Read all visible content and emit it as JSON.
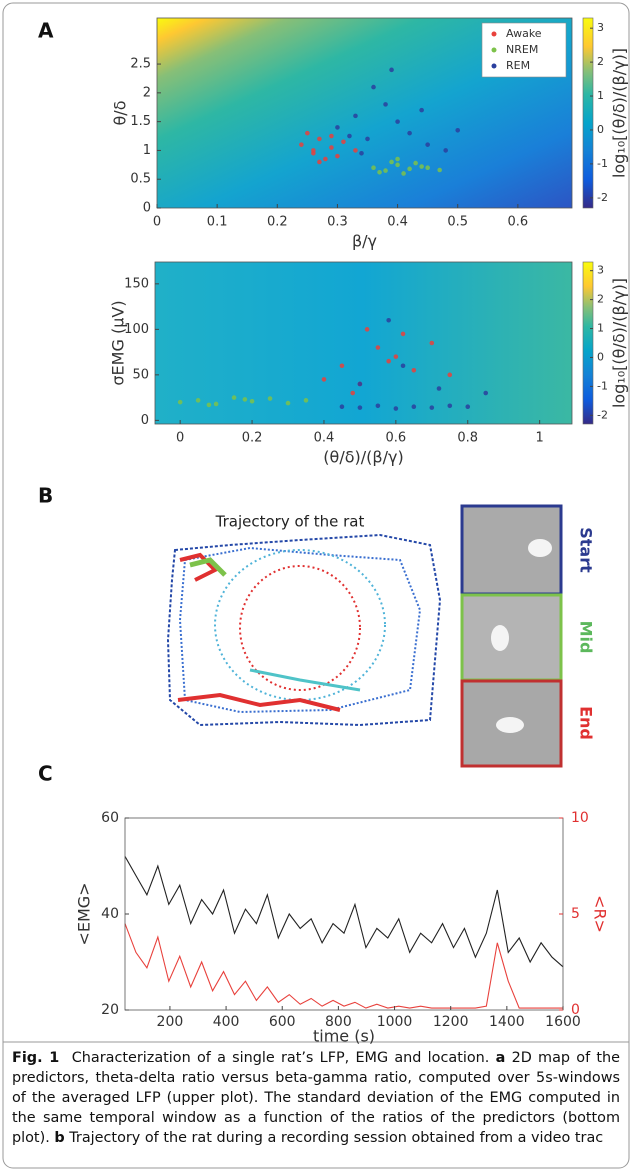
{
  "panel_labels": [
    "A",
    "B",
    "C"
  ],
  "chart_data": [
    {
      "type": "scatter",
      "xlabel": "β/γ",
      "ylabel": "θ/δ",
      "xlim": [
        0,
        0.69
      ],
      "ylim": [
        0,
        3.3
      ],
      "xticks": [
        0,
        0.1,
        0.2,
        0.3,
        0.4,
        0.5,
        0.6
      ],
      "yticks": [
        0,
        0.5,
        1,
        1.5,
        2,
        2.5
      ],
      "legend": "upper right",
      "series": [
        {
          "name": "Awake",
          "color": "#e8413c",
          "x": [
            0.24,
            0.26,
            0.27,
            0.28,
            0.29,
            0.3,
            0.25,
            0.31,
            0.27,
            0.33,
            0.29,
            0.26
          ],
          "y": [
            1.1,
            0.95,
            1.2,
            0.85,
            1.05,
            0.9,
            1.3,
            1.15,
            0.8,
            1.0,
            1.25,
            1.0
          ]
        },
        {
          "name": "NREM",
          "color": "#7dc24a",
          "x": [
            0.36,
            0.38,
            0.4,
            0.42,
            0.44,
            0.39,
            0.41,
            0.45,
            0.43,
            0.37,
            0.47,
            0.4
          ],
          "y": [
            0.7,
            0.65,
            0.75,
            0.68,
            0.72,
            0.8,
            0.6,
            0.7,
            0.78,
            0.62,
            0.66,
            0.85
          ]
        },
        {
          "name": "REM",
          "color": "#2a3f9e",
          "x": [
            0.3,
            0.33,
            0.35,
            0.38,
            0.4,
            0.42,
            0.45,
            0.36,
            0.48,
            0.32,
            0.44,
            0.39,
            0.5,
            0.34
          ],
          "y": [
            1.4,
            1.6,
            1.2,
            1.8,
            1.5,
            1.3,
            1.1,
            2.1,
            1.0,
            1.25,
            1.7,
            2.4,
            1.35,
            0.95
          ]
        }
      ],
      "colorbar": {
        "label": "log₁₀[(θ/δ)/(β/γ)]",
        "lim": [
          -2.3,
          3.3
        ],
        "ticks": [
          -2,
          -1,
          0,
          1,
          2,
          3
        ]
      }
    },
    {
      "type": "scatter",
      "xlabel": "(θ/δ)/(β/γ)",
      "ylabel": "σEMG (μV)",
      "xlim": [
        -0.07,
        1.09
      ],
      "ylim": [
        -4,
        174
      ],
      "xticks": [
        0,
        0.2,
        0.4,
        0.6,
        0.8,
        1
      ],
      "yticks": [
        0,
        50,
        100,
        150
      ],
      "series": [
        {
          "color": "#e8413c",
          "x": [
            0.4,
            0.45,
            0.5,
            0.55,
            0.6,
            0.62,
            0.65,
            0.7,
            0.52,
            0.58,
            0.75,
            0.48
          ],
          "y": [
            45,
            60,
            40,
            80,
            70,
            95,
            55,
            85,
            100,
            65,
            50,
            30
          ]
        },
        {
          "color": "#7dc24a",
          "x": [
            0.0,
            0.05,
            0.1,
            0.15,
            0.2,
            0.25,
            0.3,
            0.35,
            0.08,
            0.18
          ],
          "y": [
            20,
            22,
            18,
            25,
            21,
            24,
            19,
            22,
            17,
            23
          ]
        },
        {
          "color": "#2a3f9e",
          "x": [
            0.45,
            0.5,
            0.55,
            0.6,
            0.65,
            0.7,
            0.75,
            0.8,
            0.5,
            0.62,
            0.72,
            0.58,
            0.85
          ],
          "y": [
            15,
            14,
            16,
            13,
            15,
            14,
            16,
            15,
            40,
            60,
            35,
            110,
            30
          ]
        }
      ],
      "colorbar": {
        "label": "log₁₀[(θ/δ)/(β/γ)]",
        "lim": [
          -2.3,
          3.3
        ],
        "ticks": [
          -2,
          -1,
          0,
          1,
          2,
          3
        ]
      }
    },
    {
      "type": "line",
      "xlabel": "time (s)",
      "ylabel": "<EMG>",
      "y2label": "<R>",
      "x": [
        40,
        79,
        118,
        157,
        196,
        235,
        274,
        313,
        352,
        391,
        430,
        469,
        508,
        547,
        586,
        625,
        664,
        703,
        742,
        781,
        820,
        859,
        898,
        937,
        976,
        1015,
        1054,
        1093,
        1132,
        1171,
        1210,
        1249,
        1288,
        1327,
        1366,
        1405,
        1444,
        1483,
        1522,
        1561,
        1600
      ],
      "xlim": [
        40,
        1600
      ],
      "xticks": [
        200,
        400,
        600,
        800,
        1000,
        1200,
        1400,
        1600
      ],
      "ylim": [
        20,
        60
      ],
      "yticks": [
        20,
        40,
        60
      ],
      "y2lim": [
        0,
        10
      ],
      "y2ticks": [
        0,
        5,
        10
      ],
      "series": [
        {
          "color": "#222222",
          "values": [
            52,
            48,
            44,
            50,
            42,
            46,
            38,
            43,
            40,
            45,
            36,
            41,
            38,
            44,
            35,
            40,
            37,
            39,
            34,
            38,
            36,
            42,
            33,
            37,
            35,
            39,
            32,
            36,
            34,
            38,
            33,
            37,
            31,
            36,
            45,
            32,
            35,
            30,
            34,
            31,
            29
          ]
        },
        {
          "color": "#e8413c",
          "axis": "y2",
          "values": [
            4.5,
            3,
            2.2,
            3.8,
            1.5,
            2.8,
            1.2,
            2.5,
            1,
            2,
            0.8,
            1.5,
            0.5,
            1.2,
            0.4,
            0.8,
            0.3,
            0.6,
            0.2,
            0.5,
            0.2,
            0.4,
            0.1,
            0.3,
            0.1,
            0.2,
            0.1,
            0.2,
            0.1,
            0.1,
            0.1,
            0.1,
            0.1,
            0.2,
            3.5,
            1.5,
            0.1,
            0.1,
            0.1,
            0.1,
            0.1
          ]
        }
      ]
    }
  ],
  "panel_b": {
    "title": "Trajectory of the rat",
    "frames": [
      "Start",
      "Mid",
      "End"
    ]
  },
  "caption": {
    "figure": "Fig. 1",
    "title": "Characterization of a single rat’s LFP, EMG and location.",
    "a_label": "a",
    "a_text": "2D map of the predictors, theta-delta ratio versus beta-gamma ratio, computed over 5s-windows of the averaged LFP (upper plot). The standard deviation of the EMG computed in the same temporal window as a function of the ratios of the predictors (bottom plot).",
    "b_label": "b",
    "b_text": "Trajectory of the rat during a recording session obtained from a video trac"
  }
}
